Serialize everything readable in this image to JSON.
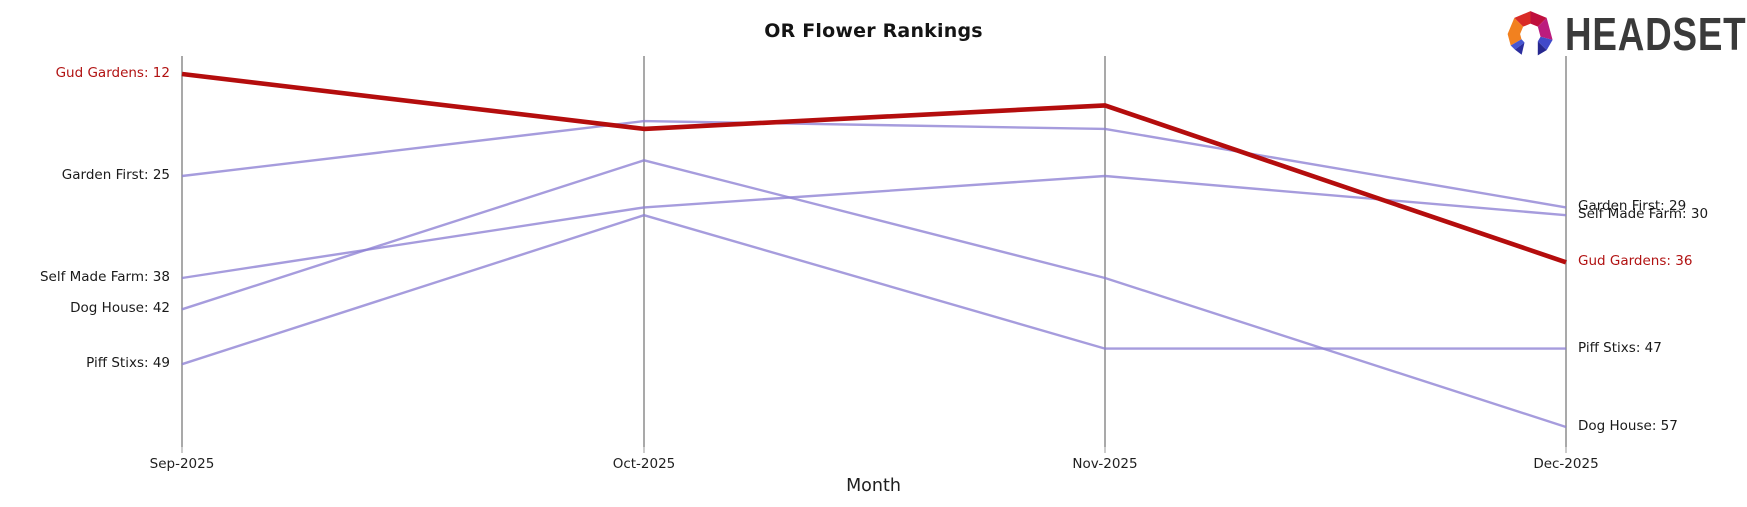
{
  "logo": {
    "text": "HEADSET"
  },
  "colors": {
    "highlight_line": "#b40d0d",
    "highlight_text": "#b11212",
    "series_line": "#8d80d4",
    "series_line_display": "#a49add",
    "axis_line": "#a9a9a9",
    "tick_text": "#1f1f1f",
    "label_text": "#1a1a1a",
    "logo_text": "#3a3a3a"
  },
  "chart_data": {
    "type": "line",
    "variant": "bump-chart-rankings",
    "title": "OR Flower Rankings",
    "xlabel": "Month",
    "ylabel": "",
    "x": [
      "Sep-2025",
      "Oct-2025",
      "Nov-2025",
      "Dec-2025"
    ],
    "y_semantics": "rank (lower number = higher placement), y axis inverted, no y ticks shown",
    "ylim_implied": [
      12,
      57
    ],
    "legend": "none; series are labeled at line endpoints",
    "grid": "one vertical gray line per month",
    "series": [
      {
        "name": "Gud Gardens",
        "values": [
          12,
          19,
          16,
          36
        ],
        "highlighted": true
      },
      {
        "name": "Garden First",
        "values": [
          25,
          18,
          19,
          29
        ],
        "highlighted": false
      },
      {
        "name": "Self Made Farm",
        "values": [
          38,
          29,
          25,
          30
        ],
        "highlighted": false
      },
      {
        "name": "Dog House",
        "values": [
          42,
          23,
          38,
          57
        ],
        "highlighted": false
      },
      {
        "name": "Piff Stixs",
        "values": [
          49,
          30,
          47,
          47
        ],
        "highlighted": false
      }
    ],
    "left_labels": [
      {
        "text": "Gud Gardens: 12",
        "value": 12,
        "highlighted": true
      },
      {
        "text": "Garden First: 25",
        "value": 25,
        "highlighted": false
      },
      {
        "text": "Self Made Farm: 38",
        "value": 38,
        "highlighted": false
      },
      {
        "text": "Dog House: 42",
        "value": 42,
        "highlighted": false
      },
      {
        "text": "Piff Stixs: 49",
        "value": 49,
        "highlighted": false
      }
    ],
    "right_labels": [
      {
        "text": "Garden First: 29",
        "value": 29,
        "highlighted": false
      },
      {
        "text": "Self Made Farm: 30",
        "value": 30,
        "highlighted": false
      },
      {
        "text": "Gud Gardens: 36",
        "value": 36,
        "highlighted": true
      },
      {
        "text": "Piff Stixs: 47",
        "value": 47,
        "highlighted": false
      },
      {
        "text": "Dog House: 57",
        "value": 57,
        "highlighted": false
      }
    ]
  }
}
